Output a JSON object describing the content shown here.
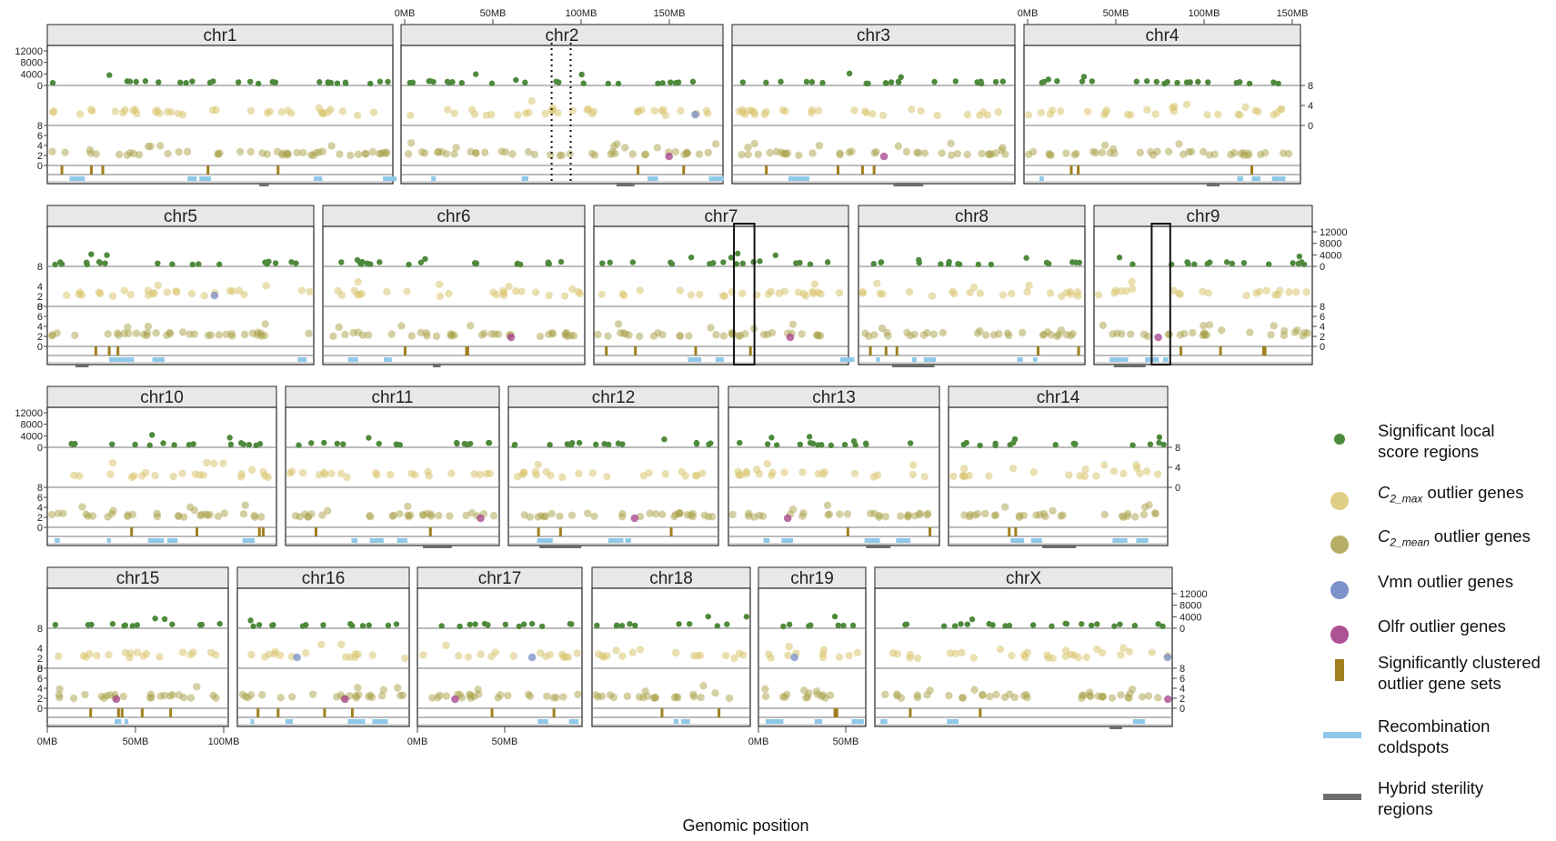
{
  "chart_data": {
    "type": "scatter",
    "xlabel": "Genomic position",
    "track_axes": {
      "local_score_ticks": [
        "12000",
        "8000",
        "4000",
        "0"
      ],
      "outlier_ticks": [
        "8",
        "6",
        "4",
        "2",
        "0"
      ],
      "top_scale_ticks": [
        "0MB",
        "50MB",
        "100MB",
        "150MB"
      ],
      "bottom_scale_ticks_chr15": [
        "0MB",
        "50MB",
        "100MB"
      ],
      "bottom_scale_ticks_chr17": [
        "0MB",
        "50MB"
      ],
      "bottom_scale_ticks_chr19": [
        "0MB",
        "50MB"
      ]
    },
    "chromosomes": [
      {
        "name": "chr1",
        "length_mb": 195
      },
      {
        "name": "chr2",
        "length_mb": 182
      },
      {
        "name": "chr3",
        "length_mb": 160
      },
      {
        "name": "chr4",
        "length_mb": 157
      },
      {
        "name": "chr5",
        "length_mb": 152
      },
      {
        "name": "chr6",
        "length_mb": 150
      },
      {
        "name": "chr7",
        "length_mb": 145
      },
      {
        "name": "chr8",
        "length_mb": 130
      },
      {
        "name": "chr9",
        "length_mb": 125
      },
      {
        "name": "chr10",
        "length_mb": 131
      },
      {
        "name": "chr11",
        "length_mb": 122
      },
      {
        "name": "chr12",
        "length_mb": 120
      },
      {
        "name": "chr13",
        "length_mb": 121
      },
      {
        "name": "chr14",
        "length_mb": 125
      },
      {
        "name": "chr15",
        "length_mb": 104
      },
      {
        "name": "chr16",
        "length_mb": 98
      },
      {
        "name": "chr17",
        "length_mb": 95
      },
      {
        "name": "chr18",
        "length_mb": 91
      },
      {
        "name": "chr19",
        "length_mb": 61
      },
      {
        "name": "chrX",
        "length_mb": 171
      }
    ],
    "highlighted_regions": [
      {
        "chromosome": "chr2",
        "style": "dotted",
        "start_mb": 85,
        "end_mb": 96
      },
      {
        "chromosome": "chr7",
        "style": "solid",
        "start_mb": 80,
        "end_mb": 92
      },
      {
        "chromosome": "chr9",
        "style": "solid",
        "start_mb": 32,
        "end_mb": 43
      }
    ],
    "legend": [
      {
        "key": "local",
        "label": "Significant local\nscore regions",
        "color": "#4e8a3c"
      },
      {
        "key": "c2max",
        "label_pre": "C",
        "label_sub": "2_max",
        "label_post": " outlier genes",
        "color": "#d9c570"
      },
      {
        "key": "c2mean",
        "label_pre": "C",
        "label_sub": "2_mean",
        "label_post": " outlier genes",
        "color": "#a9a14a"
      },
      {
        "key": "vmn",
        "label": "Vmn outlier genes",
        "color": "#6f86c4"
      },
      {
        "key": "olfr",
        "label": "Olfr outlier genes",
        "color": "#a43f88"
      },
      {
        "key": "cluster",
        "label": "Significantly clustered\noutlier gene sets",
        "color": "#a07f1e"
      },
      {
        "key": "coldspot",
        "label": "Recombination\ncoldspots",
        "color": "#8fc9ea"
      },
      {
        "key": "sterility",
        "label": "Hybrid sterility\nregions",
        "color": "#6e6e6e"
      }
    ]
  }
}
